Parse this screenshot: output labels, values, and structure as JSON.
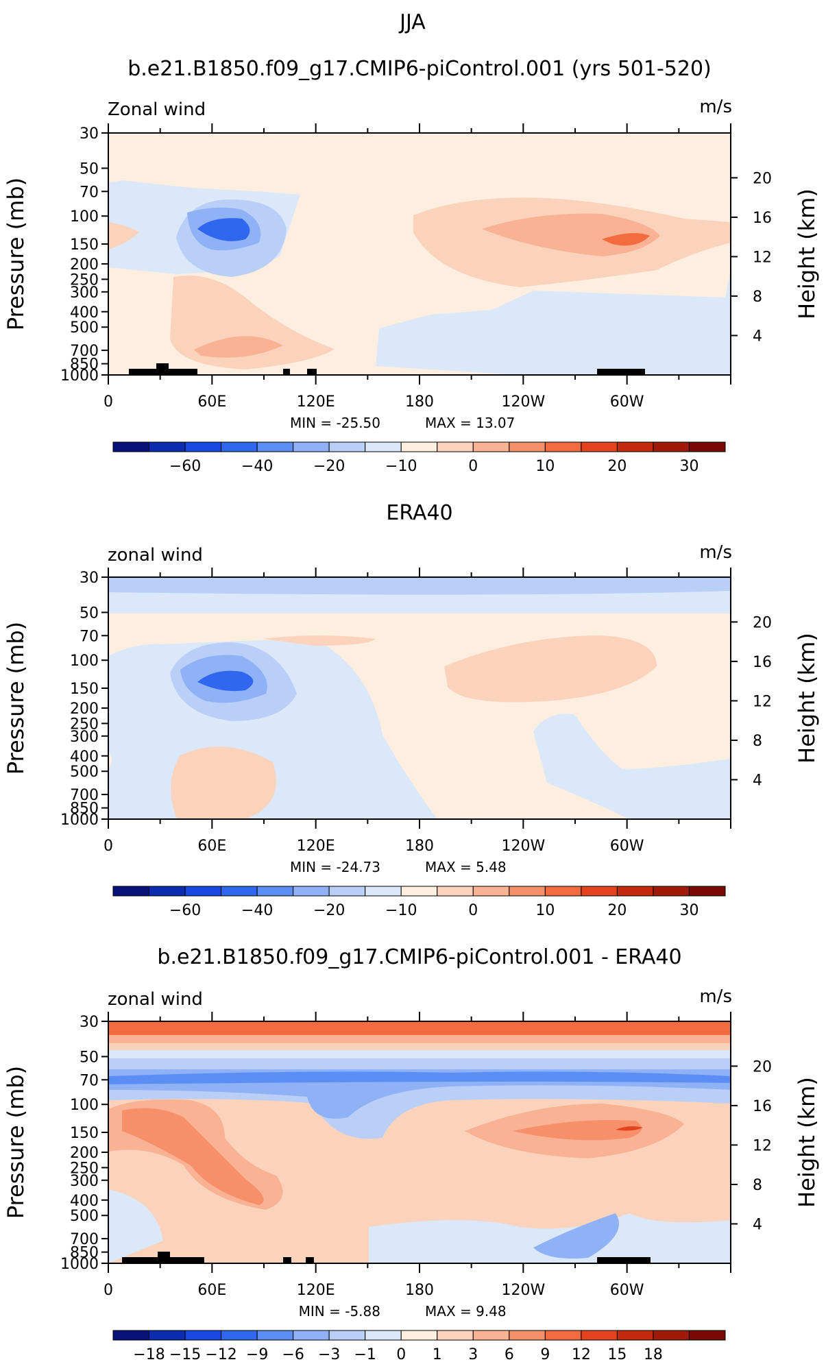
{
  "figure_title": "JJA",
  "units": "m/s",
  "y_axis_left": "Pressure (mb)",
  "y_axis_right": "Height (km)",
  "pressure_ticks": [
    "30",
    "50",
    "70",
    "100",
    "150",
    "200",
    "250",
    "300",
    "400",
    "500",
    "700",
    "850",
    "1000"
  ],
  "height_ticks": [
    "20",
    "16",
    "12",
    "8",
    "4"
  ],
  "lon_ticks": [
    "0",
    "60E",
    "120E",
    "180",
    "120W",
    "60W"
  ],
  "colorbar_std": {
    "labels": [
      "-60",
      "-40",
      "-20",
      "-10",
      "0",
      "10",
      "20",
      "30"
    ],
    "colors": [
      "#08137a",
      "#0a2db0",
      "#1848e0",
      "#2f68ef",
      "#5b8ef5",
      "#8fb1f5",
      "#b9cff7",
      "#dbe8fa",
      "#fdeee0",
      "#fbd3bc",
      "#f9b293",
      "#f78f6a",
      "#f46b40",
      "#e3441f",
      "#c22a10",
      "#9e1a09",
      "#7a0807"
    ]
  },
  "colorbar_diff": {
    "labels": [
      "-18",
      "-15",
      "-12",
      "-9",
      "-6",
      "-3",
      "-1",
      "0",
      "1",
      "3",
      "6",
      "9",
      "12",
      "15",
      "18"
    ],
    "colors": [
      "#08137a",
      "#0a2db0",
      "#1848e0",
      "#2f68ef",
      "#5b8ef5",
      "#8fb1f5",
      "#b9cff7",
      "#dbe8fa",
      "#fdeee0",
      "#fbd3bc",
      "#f9b293",
      "#f78f6a",
      "#f46b40",
      "#e3441f",
      "#c22a10",
      "#9e1a09",
      "#7a0807"
    ]
  },
  "chart_data": [
    {
      "type": "heatmap",
      "title": "b.e21.B1850.f09_g17.CMIP6-piControl.001 (yrs 501-520)",
      "field_label": "Zonal wind",
      "min_text": "MIN = -25.50",
      "max_text": "MAX = 13.07",
      "min": -25.5,
      "max": 13.07,
      "xlim": [
        0,
        360
      ],
      "ylim_mb": [
        1000,
        30
      ]
    },
    {
      "type": "heatmap",
      "title": "ERA40",
      "field_label": "zonal wind",
      "min_text": "MIN = -24.73",
      "max_text": "MAX = 5.48",
      "min": -24.73,
      "max": 5.48,
      "xlim": [
        0,
        360
      ],
      "ylim_mb": [
        1000,
        30
      ]
    },
    {
      "type": "heatmap",
      "title": "b.e21.B1850.f09_g17.CMIP6-piControl.001 - ERA40",
      "field_label": "zonal wind",
      "min_text": "MIN = -5.88",
      "max_text": "MAX = 9.48",
      "min": -5.88,
      "max": 9.48,
      "xlim": [
        0,
        360
      ],
      "ylim_mb": [
        1000,
        30
      ]
    }
  ]
}
